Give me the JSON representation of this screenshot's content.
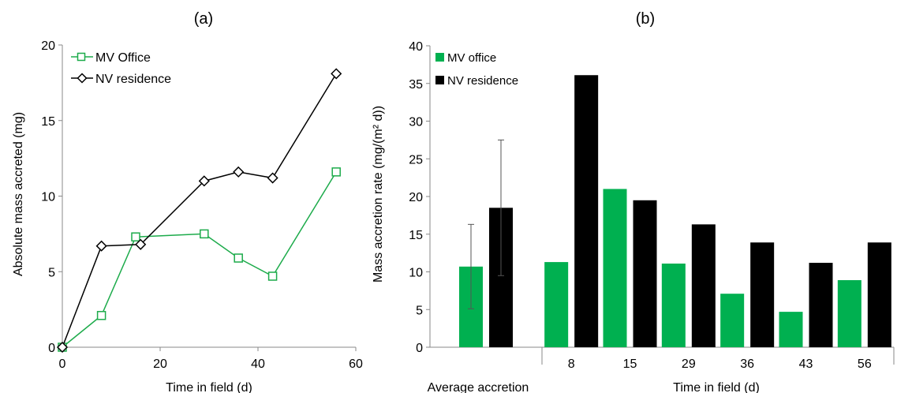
{
  "chart_data": [
    {
      "type": "line",
      "panel_label": "(a)",
      "xlabel": "Time in field (d)",
      "ylabel": "Absolute mass accreted (mg)",
      "xlim": [
        0,
        60
      ],
      "ylim": [
        0,
        20
      ],
      "x_ticks": [
        0,
        20,
        40,
        60
      ],
      "y_ticks": [
        0,
        5,
        10,
        15,
        20
      ],
      "grid": false,
      "legend_position": "top-left",
      "series": [
        {
          "name": "MV Office",
          "marker": "square",
          "color": "#1DAB4B",
          "x": [
            0,
            8,
            15,
            29,
            36,
            43,
            56
          ],
          "y": [
            0,
            2.1,
            7.3,
            7.5,
            5.9,
            4.7,
            11.6
          ]
        },
        {
          "name": "NV residence",
          "marker": "diamond",
          "color": "#000000",
          "x": [
            0,
            8,
            16,
            29,
            36,
            43,
            56
          ],
          "y": [
            0,
            6.7,
            6.8,
            11.0,
            11.6,
            11.2,
            18.1
          ]
        }
      ]
    },
    {
      "type": "bar",
      "panel_label": "(b)",
      "xlabel": "Time in field (d)",
      "ylabel": "Mass accretion rate (mg/(m² d))",
      "ylim": [
        0,
        40
      ],
      "y_ticks": [
        0,
        5,
        10,
        15,
        20,
        25,
        30,
        35,
        40
      ],
      "grid": false,
      "legend_position": "top-left",
      "average": {
        "label": "Average accretion",
        "values": [
          10.7,
          18.5
        ],
        "error_low": [
          5.1,
          9.5
        ],
        "error_high": [
          16.3,
          27.5
        ]
      },
      "categories": [
        "8",
        "15",
        "29",
        "36",
        "43",
        "56"
      ],
      "series": [
        {
          "name": "MV office",
          "color": "#00B050",
          "values": [
            11.3,
            21.0,
            11.1,
            7.1,
            4.7,
            8.9
          ]
        },
        {
          "name": "NV residence",
          "color": "#000000",
          "values": [
            36.1,
            19.5,
            16.3,
            13.9,
            11.2,
            13.9
          ]
        }
      ]
    }
  ]
}
